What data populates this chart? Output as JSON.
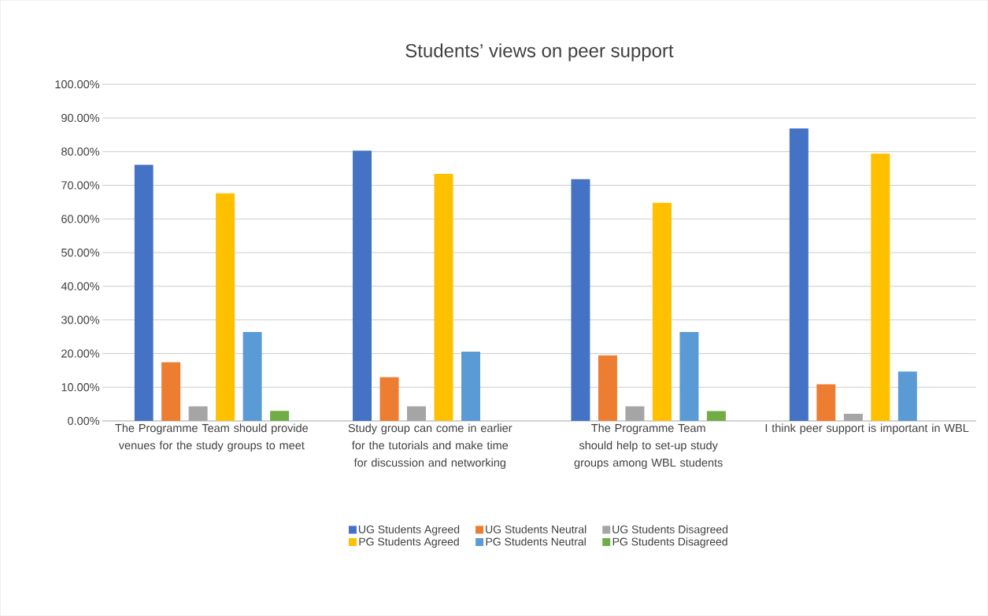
{
  "chart_data": {
    "type": "bar",
    "title": "Students’ views on peer support",
    "categories": [
      "The Programme Team should provide venues for the study groups to meet",
      "Study group can come in earlier for the tutorials and make time for discussion and networking",
      "The Programme Team should help to set-up study groups among WBL students",
      "I think peer support is important in WBL"
    ],
    "series": [
      {
        "name": "UG Students Agreed",
        "color": "#4472c4",
        "values": [
          76.1,
          80.3,
          71.8,
          86.9
        ]
      },
      {
        "name": "UG Students Neutral",
        "color": "#ed7d31",
        "values": [
          17.4,
          13.0,
          19.5,
          10.9
        ]
      },
      {
        "name": "UG Students Disagreed",
        "color": "#a5a5a5",
        "values": [
          4.3,
          4.3,
          4.3,
          2.1
        ]
      },
      {
        "name": "PG Students Agreed",
        "color": "#ffc000",
        "values": [
          67.6,
          73.4,
          64.8,
          79.4
        ]
      },
      {
        "name": "PG Students Neutral",
        "color": "#5b9bd5",
        "values": [
          26.4,
          20.6,
          26.4,
          14.7
        ]
      },
      {
        "name": "PG Students Disagreed",
        "color": "#70ad47",
        "values": [
          3.0,
          0,
          2.9,
          0
        ]
      }
    ],
    "ylim": [
      0,
      100
    ],
    "yticks": [
      {
        "value": 0,
        "label": "0.00%"
      },
      {
        "value": 10,
        "label": "10.00%"
      },
      {
        "value": 20,
        "label": "20.00%"
      },
      {
        "value": 30,
        "label": "30.00%"
      },
      {
        "value": 40,
        "label": "40.00%"
      },
      {
        "value": 50,
        "label": "50.00%"
      },
      {
        "value": 60,
        "label": "60.00%"
      },
      {
        "value": 70,
        "label": "70.00%"
      },
      {
        "value": 80,
        "label": "80.00%"
      },
      {
        "value": 90,
        "label": "90.00%"
      },
      {
        "value": 100,
        "label": "100.00%"
      }
    ],
    "grid": "y",
    "legend": "bottom"
  }
}
